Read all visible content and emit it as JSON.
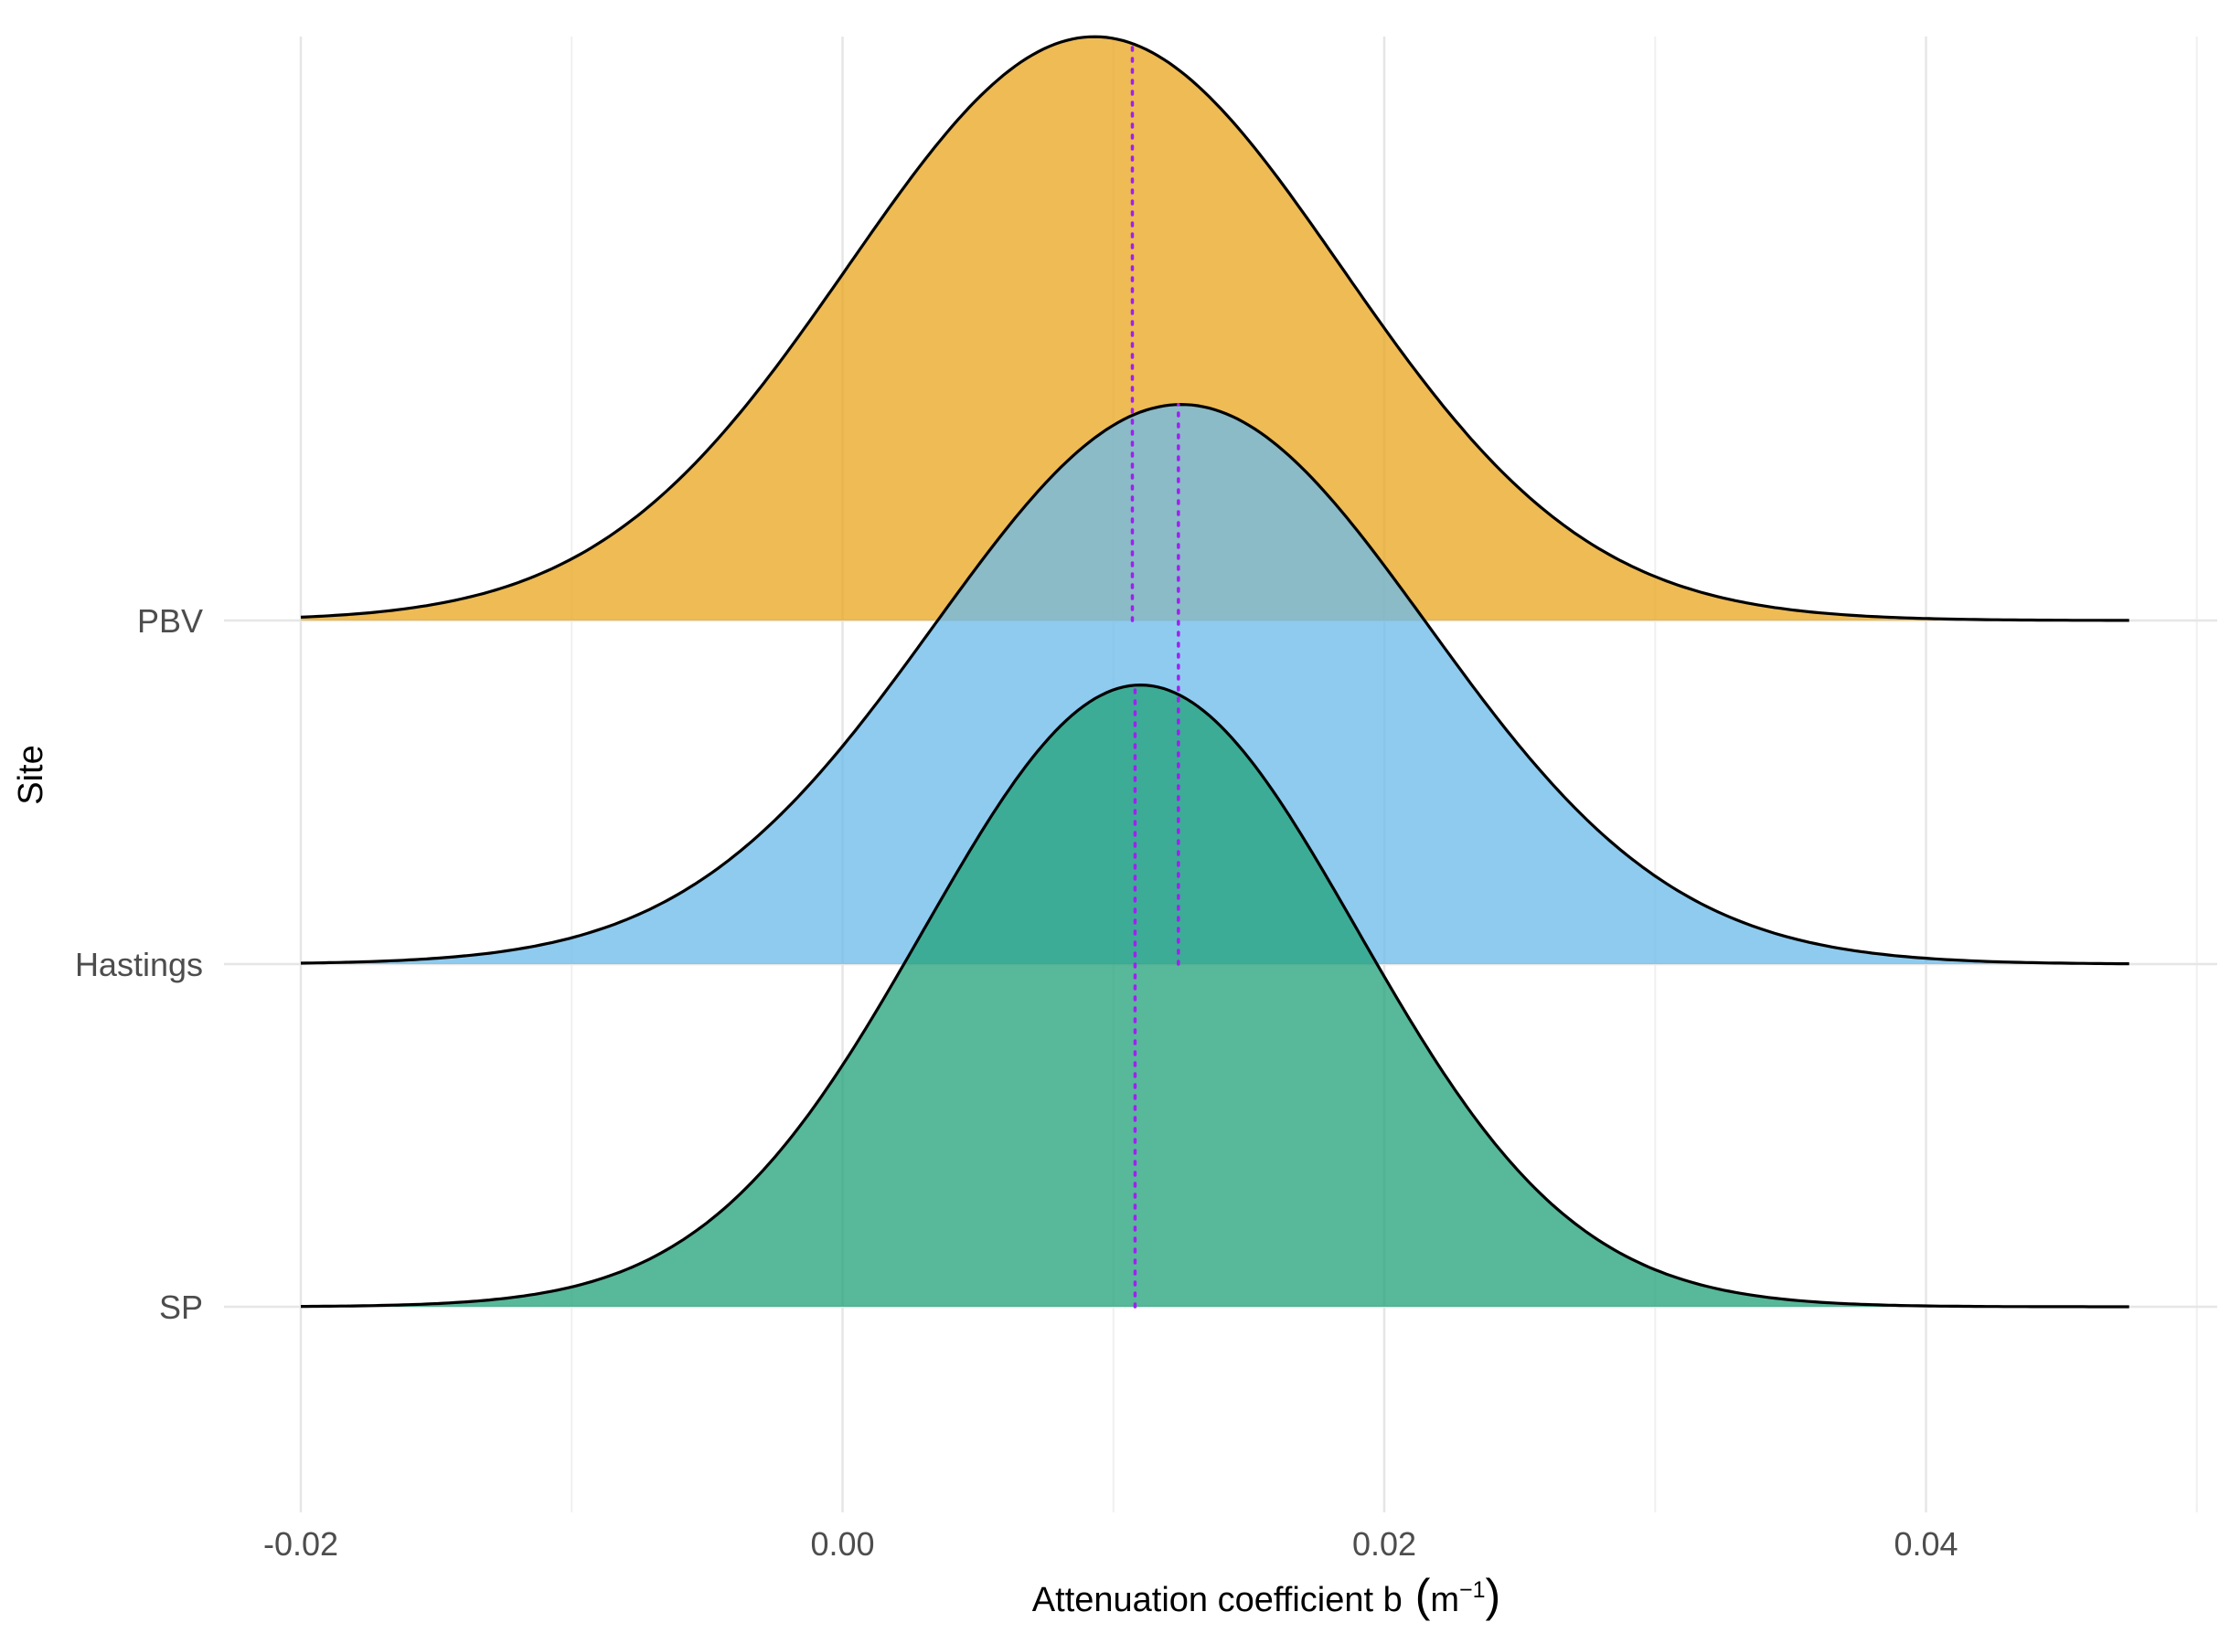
{
  "chart_data": {
    "type": "ridgeline-density",
    "xlabel": "Attenuation coefficient  b",
    "xlabel_unit": "m",
    "xlabel_exponent": "−1",
    "ylabel": "Site",
    "xlim": [
      -0.02,
      0.0475
    ],
    "x_ticks": [
      -0.02,
      0.0,
      0.02,
      0.04
    ],
    "x_tick_labels": [
      "-0.02",
      "0.00",
      "0.02",
      "0.04"
    ],
    "x_minor_ticks": [
      -0.01,
      0.01,
      0.03,
      0.05
    ],
    "grid": true,
    "legend": "none",
    "series": [
      {
        "name": "PBV",
        "mean": 0.0093,
        "sd": 0.0091,
        "peak_height": 1.69,
        "median_line": 0.0107,
        "color": "#E9A61F"
      },
      {
        "name": "Hastings",
        "mean": 0.0125,
        "sd": 0.0091,
        "peak_height": 1.62,
        "median_line": 0.0124,
        "color": "#6BBAEA"
      },
      {
        "name": "SP",
        "mean": 0.011,
        "sd": 0.008,
        "peak_height": 1.8,
        "median_line": 0.0108,
        "color": "#22A27A"
      }
    ],
    "median_line_color": "#A020F0"
  }
}
